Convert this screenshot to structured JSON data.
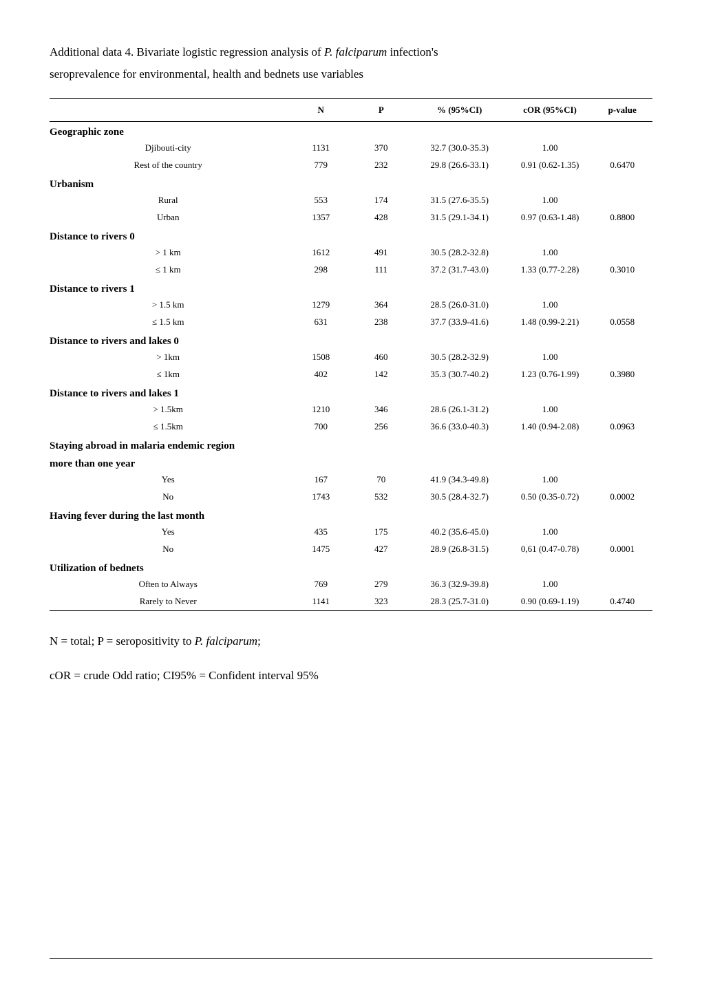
{
  "intro_line1_a": "Additional data 4. Bivariate logistic regression analysis of ",
  "intro_line1_b": "P. falciparum",
  "intro_line1_c": " infection's",
  "intro_line2": "seroprevalence for environmental, health and bednets use variables",
  "headers": {
    "blank": "",
    "n": "N",
    "p": "P",
    "pct": "% (95%CI)",
    "cor": "cOR (95%CI)",
    "pval": "p-value"
  },
  "sections": [
    {
      "title": "Geographic zone",
      "rows": [
        {
          "label": "Djibouti-city",
          "n": "1131",
          "p": "370",
          "pct": "32.7 (30.0-35.3)",
          "cor": "1.00",
          "pval": ""
        },
        {
          "label": "Rest of the country",
          "n": "779",
          "p": "232",
          "pct": "29.8 (26.6-33.1)",
          "cor": "0.91 (0.62-1.35)",
          "pval": "0.6470"
        }
      ]
    },
    {
      "title": "Urbanism",
      "rows": [
        {
          "label": "Rural",
          "n": "553",
          "p": "174",
          "pct": "31.5 (27.6-35.5)",
          "cor": "1.00",
          "pval": ""
        },
        {
          "label": "Urban",
          "n": "1357",
          "p": "428",
          "pct": "31.5 (29.1-34.1)",
          "cor": "0.97 (0.63-1.48)",
          "pval": "0.8800"
        }
      ]
    },
    {
      "title": "Distance to rivers 0",
      "rows": [
        {
          "label": "> 1 km",
          "n": "1612",
          "p": "491",
          "pct": "30.5 (28.2-32.8)",
          "cor": "1.00",
          "pval": ""
        },
        {
          "label": "≤ 1 km",
          "n": "298",
          "p": "111",
          "pct": "37.2 (31.7-43.0)",
          "cor": "1.33 (0.77-2.28)",
          "pval": "0.3010"
        }
      ]
    },
    {
      "title": "Distance to rivers 1",
      "rows": [
        {
          "label": "> 1.5 km",
          "n": "1279",
          "p": "364",
          "pct": "28.5 (26.0-31.0)",
          "cor": "1.00",
          "pval": ""
        },
        {
          "label": "≤ 1.5 km",
          "n": "631",
          "p": "238",
          "pct": "37.7 (33.9-41.6)",
          "cor": "1.48 (0.99-2.21)",
          "pval": "0.0558"
        }
      ]
    },
    {
      "title": "Distance to rivers and lakes 0",
      "rows": [
        {
          "label": "> 1km",
          "n": "1508",
          "p": "460",
          "pct": "30.5 (28.2-32.9)",
          "cor": "1.00",
          "pval": ""
        },
        {
          "label": "≤ 1km",
          "n": "402",
          "p": "142",
          "pct": "35.3 (30.7-40.2)",
          "cor": "1.23 (0.76-1.99)",
          "pval": "0.3980"
        }
      ]
    },
    {
      "title": "Distance to rivers and lakes 1",
      "rows": [
        {
          "label": "> 1.5km",
          "n": "1210",
          "p": "346",
          "pct": "28.6 (26.1-31.2)",
          "cor": "1.00",
          "pval": ""
        },
        {
          "label": "≤ 1.5km",
          "n": "700",
          "p": "256",
          "pct": "36.6 (33.0-40.3)",
          "cor": "1.40 (0.94-2.08)",
          "pval": "0.0963"
        }
      ]
    },
    {
      "title": "Staying abroad in malaria endemic region",
      "title2": "more than one year",
      "rows": [
        {
          "label": "Yes",
          "n": "167",
          "p": "70",
          "pct": "41.9 (34.3-49.8)",
          "cor": "1.00",
          "pval": ""
        },
        {
          "label": "No",
          "n": "1743",
          "p": "532",
          "pct": "30.5 (28.4-32.7)",
          "cor": "0.50 (0.35-0.72)",
          "pval": "0.0002"
        }
      ]
    },
    {
      "title": "Having fever during the last month",
      "rows": [
        {
          "label": "Yes",
          "n": "435",
          "p": "175",
          "pct": "40.2 (35.6-45.0)",
          "cor": "1.00",
          "pval": ""
        },
        {
          "label": "No",
          "n": "1475",
          "p": "427",
          "pct": "28.9 (26.8-31.5)",
          "cor": "0,61 (0.47-0.78)",
          "pval": "0.0001"
        }
      ]
    },
    {
      "title": "Utilization of bednets",
      "rows": [
        {
          "label": "Often to Always",
          "n": "769",
          "p": "279",
          "pct": "36.3 (32.9-39.8)",
          "cor": "1.00",
          "pval": ""
        },
        {
          "label": "Rarely to Never",
          "n": "1141",
          "p": "323",
          "pct": "28.3 (25.7-31.0)",
          "cor": "0.90 (0.69-1.19)",
          "pval": "0.4740"
        }
      ]
    }
  ],
  "footnote1_a": "N = total; P = seropositivity to ",
  "footnote1_b": "P. falciparum",
  "footnote1_c": ";",
  "footnote2": "cOR = crude Odd ratio; CI95% = Confident interval 95%",
  "colwidths": [
    "40%",
    "10%",
    "10%",
    "16%",
    "14%",
    "10%"
  ]
}
